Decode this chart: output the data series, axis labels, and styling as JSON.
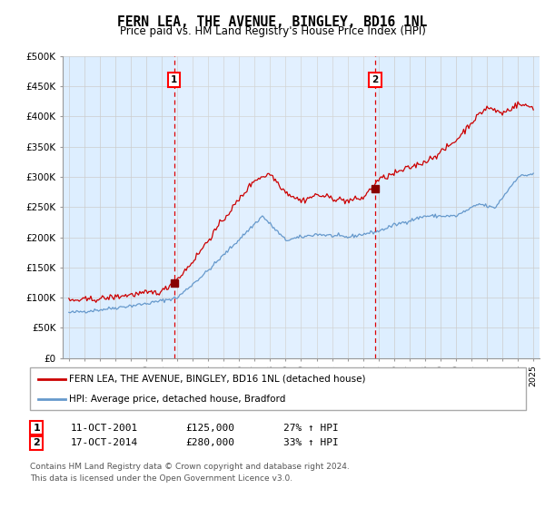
{
  "title": "FERN LEA, THE AVENUE, BINGLEY, BD16 1NL",
  "subtitle": "Price paid vs. HM Land Registry's House Price Index (HPI)",
  "legend_line1": "FERN LEA, THE AVENUE, BINGLEY, BD16 1NL (detached house)",
  "legend_line2": "HPI: Average price, detached house, Bradford",
  "purchase1_date": "11-OCT-2001",
  "purchase1_price": 125000,
  "purchase1_hpi": "27% ↑ HPI",
  "purchase2_date": "17-OCT-2014",
  "purchase2_price": 280000,
  "purchase2_hpi": "33% ↑ HPI",
  "footer": "Contains HM Land Registry data © Crown copyright and database right 2024.\nThis data is licensed under the Open Government Licence v3.0.",
  "ylim": [
    0,
    500000
  ],
  "yticks": [
    0,
    50000,
    100000,
    150000,
    200000,
    250000,
    300000,
    350000,
    400000,
    450000,
    500000
  ],
  "red_color": "#cc0000",
  "blue_color": "#6699cc",
  "bg_color": "#ddeeff",
  "grid_color": "#cccccc",
  "vline_color": "#dd0000",
  "marker_color": "#880000",
  "purchase1_year": 2001.79,
  "purchase2_year": 2014.79,
  "hpi_keypoints_x": [
    1995,
    1997,
    2000,
    2002,
    2004,
    2007.5,
    2009,
    2011,
    2013,
    2015,
    2016,
    2018,
    2020,
    2021.5,
    2022.5,
    2024,
    2025
  ],
  "hpi_keypoints_y": [
    75000,
    80000,
    90000,
    100000,
    145000,
    235000,
    195000,
    205000,
    200000,
    210000,
    220000,
    235000,
    235000,
    255000,
    248000,
    300000,
    305000
  ],
  "prop_keypoints_x": [
    1995,
    1997,
    1999,
    2001,
    2002,
    2003,
    2005,
    2007,
    2008,
    2009,
    2010,
    2011,
    2012,
    2013,
    2014,
    2015,
    2016,
    2017,
    2018,
    2019,
    2020,
    2021,
    2022,
    2023,
    2024,
    2025
  ],
  "prop_keypoints_y": [
    95000,
    98000,
    105000,
    110000,
    130000,
    160000,
    230000,
    295000,
    305000,
    275000,
    260000,
    270000,
    265000,
    260000,
    265000,
    295000,
    305000,
    315000,
    325000,
    340000,
    360000,
    390000,
    415000,
    405000,
    420000,
    415000
  ]
}
